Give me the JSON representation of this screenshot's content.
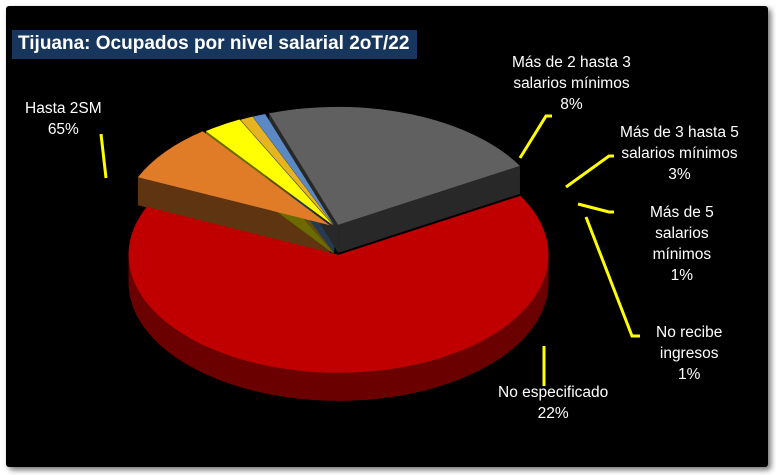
{
  "chart_data": {
    "type": "pie",
    "style": "3d-exploded",
    "title": "Tijuana: Ocupados por nivel salarial 2oT/22",
    "slices": [
      {
        "name": "Hasta 2SM",
        "label_lines": [
          "Hasta 2SM",
          "65%"
        ],
        "value": 65,
        "color": "#c00000"
      },
      {
        "name": "Más de 2 hasta 3 salarios mínimos",
        "label_lines": [
          "Más de 2 hasta 3",
          "salarios mínimos",
          "8%"
        ],
        "value": 8,
        "color": "#e07b28"
      },
      {
        "name": "Más de 3 hasta 5 salarios mínimos",
        "label_lines": [
          "Más de 3 hasta 5",
          "salarios mínimos",
          "3%"
        ],
        "value": 3,
        "color": "#ffff00"
      },
      {
        "name": "Más de 5 salarios mínimos",
        "label_lines": [
          "Más de 5",
          "salarios",
          "mínimos",
          "1%"
        ],
        "value": 1,
        "color": "#e6b422"
      },
      {
        "name": "No recibe ingresos",
        "label_lines": [
          "No recibe",
          "ingresos",
          "1%"
        ],
        "value": 1,
        "color": "#5a89c6"
      },
      {
        "name": "No especificado",
        "label_lines": [
          "No especificado",
          "22%"
        ],
        "value": 22,
        "color": "#606060"
      }
    ],
    "leader_line_color": "#ffff00",
    "background": "#000000",
    "title_background": "#17365d"
  }
}
